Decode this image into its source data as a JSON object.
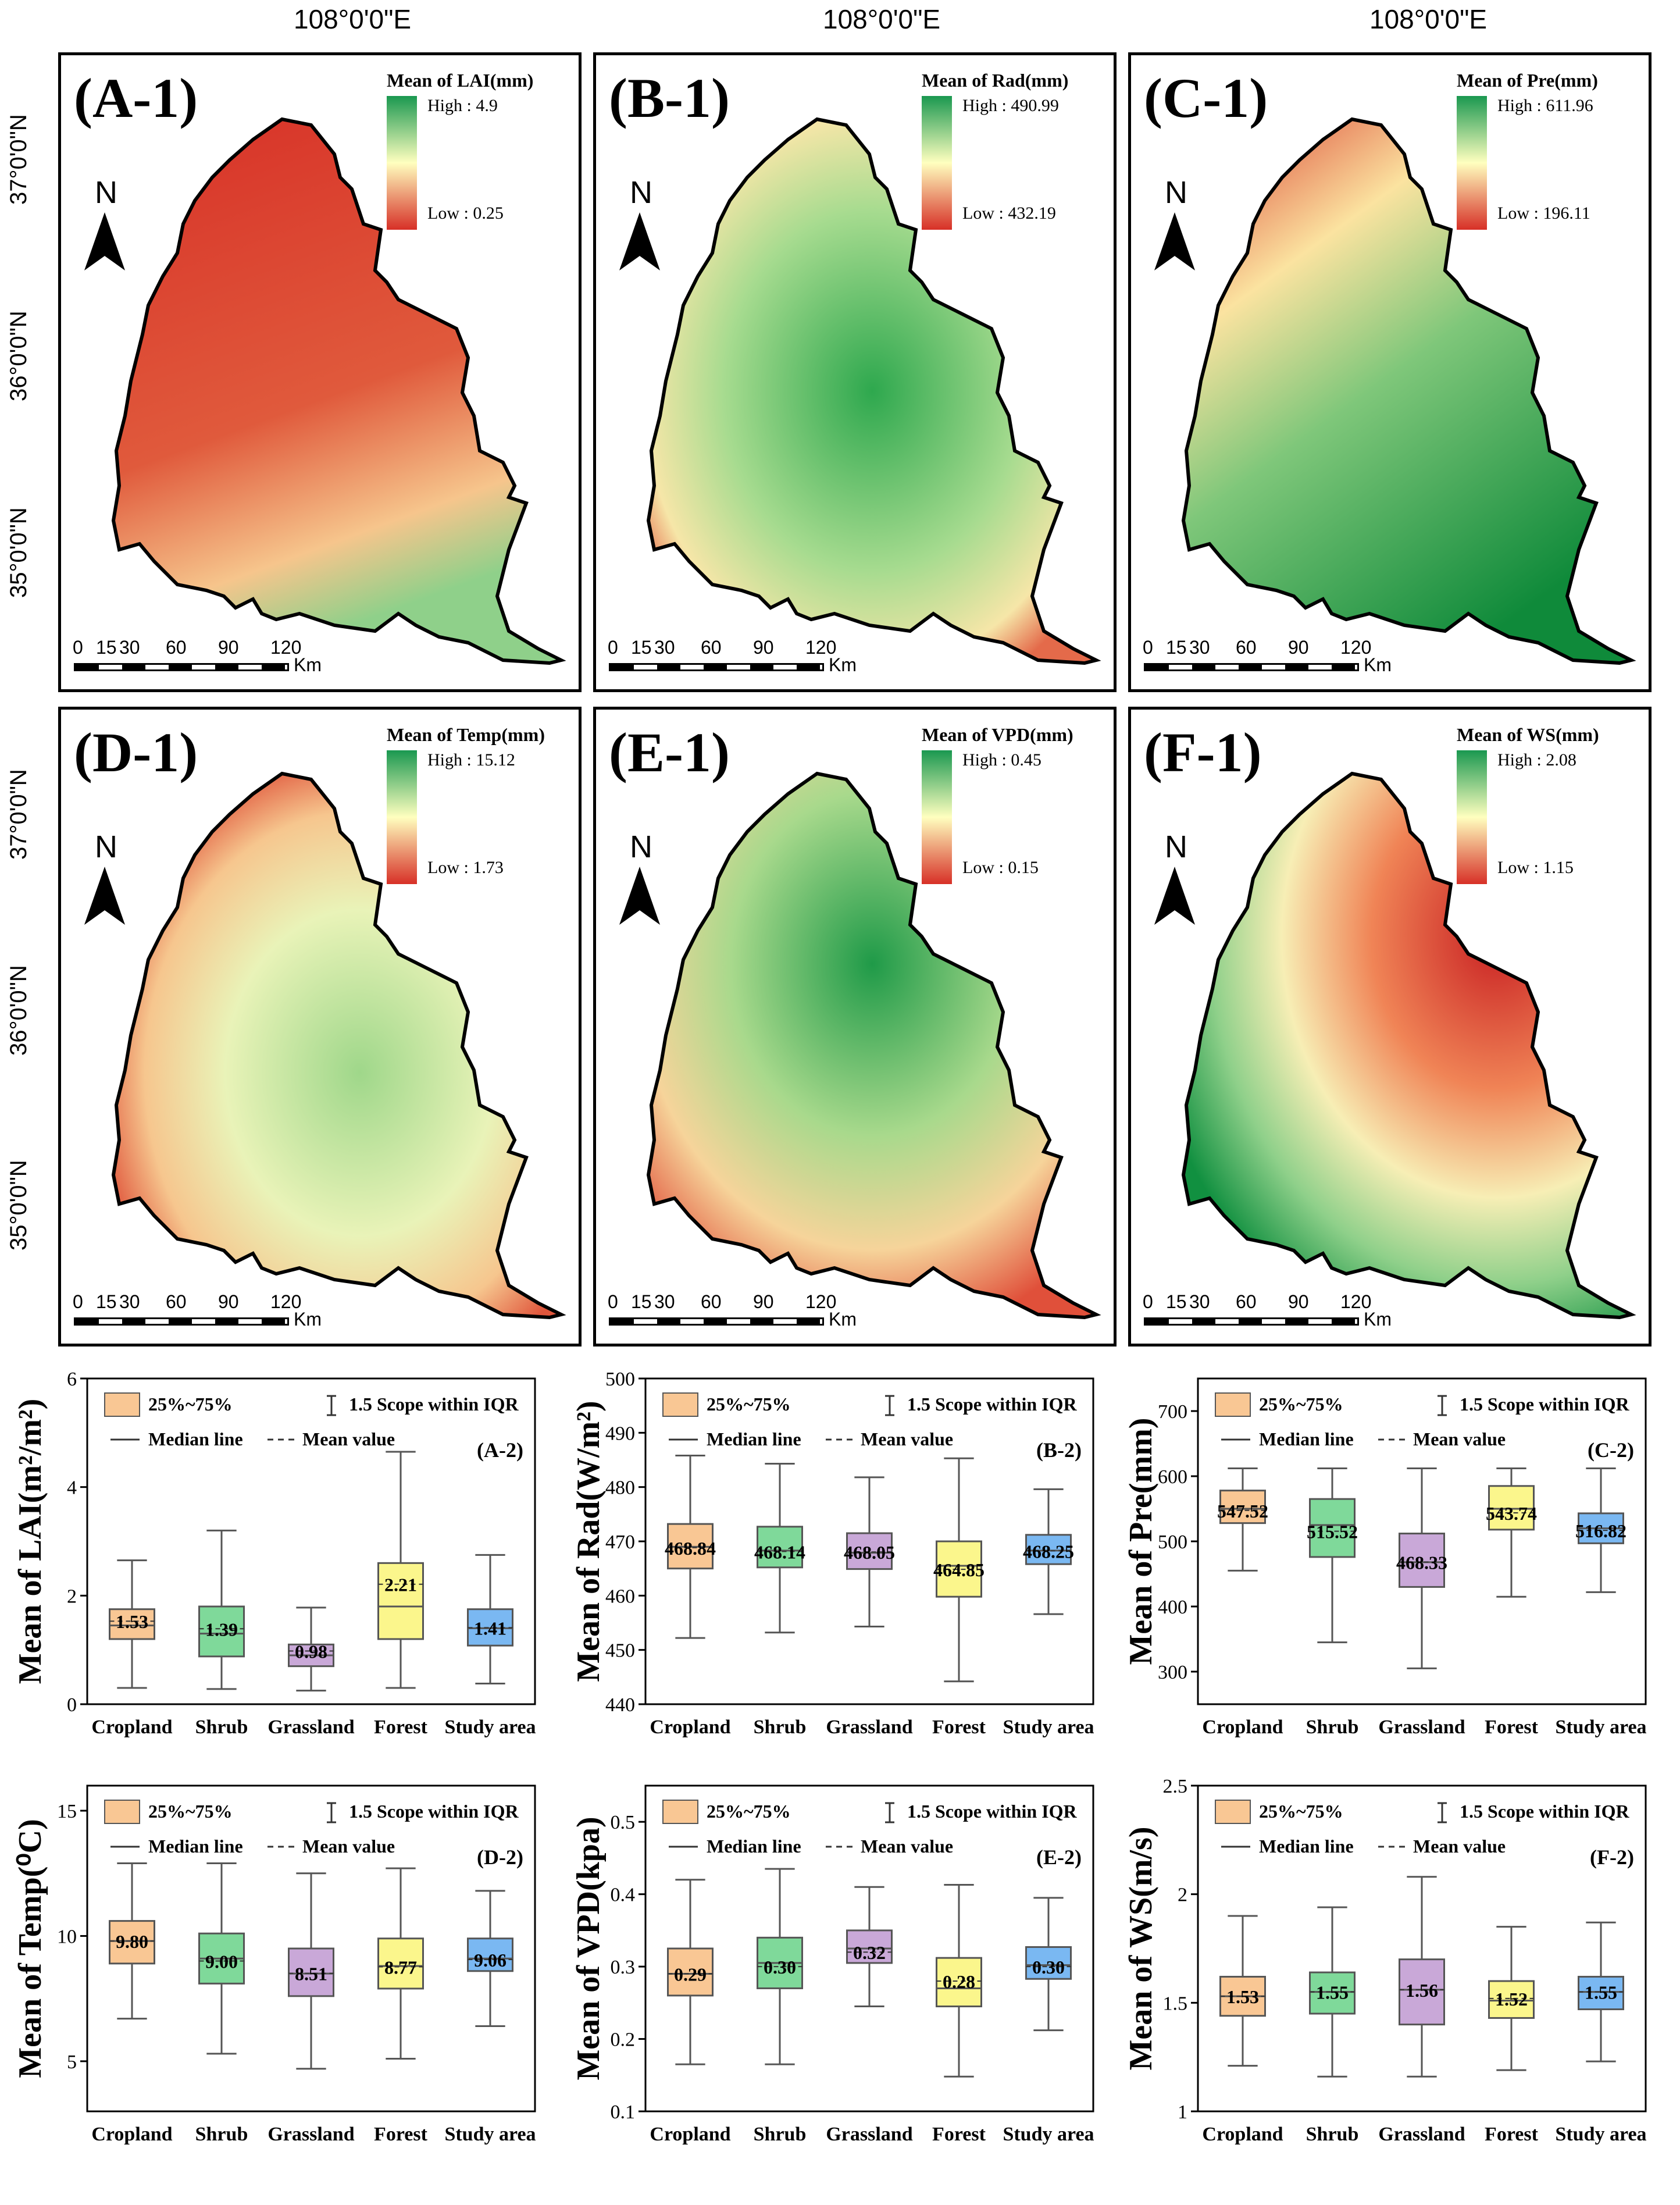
{
  "longitude_label": "108°0'0\"E",
  "latitude_labels": [
    "37°0'0\"N",
    "36°0'0\"N",
    "35°0'0\"N"
  ],
  "north_label": "N",
  "scale": {
    "ticks": [
      "0",
      "15",
      "30",
      "60",
      "90",
      "120"
    ],
    "unit": "Km"
  },
  "colors": {
    "high": "#1a9850",
    "mid": "#ffffbf",
    "low": "#d73027",
    "cropland": "#f9c794",
    "shrub": "#7fd99a",
    "grassland": "#c9a8d8",
    "forest": "#fbf68c",
    "study_area": "#7ab8f2"
  },
  "maps": [
    {
      "id": "A-1",
      "label": "(A-1)",
      "title": "Mean of LAI(mm)",
      "high": "High : 4.9",
      "low": "Low : 0.25",
      "pattern": "lai"
    },
    {
      "id": "B-1",
      "label": "(B-1)",
      "title": "Mean of Rad(mm)",
      "high": "High : 490.99",
      "low": "Low : 432.19",
      "pattern": "rad"
    },
    {
      "id": "C-1",
      "label": "(C-1)",
      "title": "Mean of Pre(mm)",
      "high": "High : 611.96",
      "low": "Low : 196.11",
      "pattern": "pre"
    },
    {
      "id": "D-1",
      "label": "(D-1)",
      "title": "Mean of Temp(mm)",
      "high": "High : 15.12",
      "low": "Low : 1.73",
      "pattern": "temp"
    },
    {
      "id": "E-1",
      "label": "(E-1)",
      "title": "Mean of VPD(mm)",
      "high": "High : 0.45",
      "low": "Low : 0.15",
      "pattern": "vpd"
    },
    {
      "id": "F-1",
      "label": "(F-1)",
      "title": "Mean of WS(mm)",
      "high": "High : 2.08",
      "low": "Low : 1.15",
      "pattern": "ws"
    }
  ],
  "legend_labels": {
    "box": "25%~75%",
    "whisker": "1.5 Scope within IQR",
    "median": "Median line",
    "mean": "Mean value"
  },
  "chart_data": [
    {
      "type": "box",
      "id": "A-2",
      "label": "(A-2)",
      "ylabel": "Mean of LAI(m²/m²)",
      "ylim": [
        0,
        6
      ],
      "yticks": [
        0,
        2,
        4,
        6
      ],
      "categories": [
        "Cropland",
        "Shrub",
        "Grassland",
        "Forest",
        "Study area"
      ],
      "boxes": [
        {
          "min": 0.3,
          "q1": 1.2,
          "median": 1.45,
          "q3": 1.75,
          "max": 2.65,
          "mean": 1.53,
          "mean_label": "1.53"
        },
        {
          "min": 0.28,
          "q1": 0.88,
          "median": 1.3,
          "q3": 1.8,
          "max": 3.2,
          "mean": 1.39,
          "mean_label": "1.39"
        },
        {
          "min": 0.25,
          "q1": 0.7,
          "median": 0.9,
          "q3": 1.1,
          "max": 1.78,
          "mean": 0.98,
          "mean_label": "0.98"
        },
        {
          "min": 0.3,
          "q1": 1.2,
          "median": 1.8,
          "q3": 2.6,
          "max": 4.65,
          "mean": 2.21,
          "mean_label": "2.21"
        },
        {
          "min": 0.38,
          "q1": 1.08,
          "median": 1.4,
          "q3": 1.75,
          "max": 2.75,
          "mean": 1.41,
          "mean_label": "1.41"
        }
      ]
    },
    {
      "type": "box",
      "id": "B-2",
      "label": "(B-2)",
      "ylabel": "Mean of Rad(W/m²)",
      "ylim": [
        440,
        500
      ],
      "yticks": [
        440,
        450,
        460,
        470,
        480,
        490,
        500
      ],
      "categories": [
        "Cropland",
        "Shrub",
        "Grassland",
        "Forest",
        "Study area"
      ],
      "boxes": [
        {
          "min": 452.2,
          "q1": 465,
          "median": 469,
          "q3": 473.2,
          "max": 485.8,
          "mean": 468.84,
          "mean_label": "468.84"
        },
        {
          "min": 453.2,
          "q1": 465.2,
          "median": 468.3,
          "q3": 472.7,
          "max": 484.3,
          "mean": 468.14,
          "mean_label": "468.14"
        },
        {
          "min": 454.3,
          "q1": 464.9,
          "median": 467.9,
          "q3": 471.5,
          "max": 481.8,
          "mean": 468.05,
          "mean_label": "468.05"
        },
        {
          "min": 444.2,
          "q1": 459.8,
          "median": 465.5,
          "q3": 470,
          "max": 485.3,
          "mean": 464.85,
          "mean_label": "464.85"
        },
        {
          "min": 456.6,
          "q1": 465.8,
          "median": 468.3,
          "q3": 471.2,
          "max": 479.6,
          "mean": 468.25,
          "mean_label": "468.25"
        }
      ]
    },
    {
      "type": "box",
      "id": "C-2",
      "label": "(C-2)",
      "ylabel": "Mean of Pre(mm)",
      "ylim": [
        250,
        750
      ],
      "yticks": [
        300,
        400,
        500,
        600,
        700
      ],
      "categories": [
        "Cropland",
        "Shrub",
        "Grassland",
        "Forest",
        "Study area"
      ],
      "boxes": [
        {
          "min": 455,
          "q1": 528,
          "median": 550,
          "q3": 578,
          "max": 612,
          "mean": 547.52,
          "mean_label": "547.52"
        },
        {
          "min": 345,
          "q1": 476,
          "median": 525,
          "q3": 565,
          "max": 612,
          "mean": 515.52,
          "mean_label": "515.52"
        },
        {
          "min": 305,
          "q1": 430,
          "median": 468,
          "q3": 512,
          "max": 612,
          "mean": 468.33,
          "mean_label": "468.33"
        },
        {
          "min": 415,
          "q1": 518,
          "median": 550,
          "q3": 585,
          "max": 612,
          "mean": 543.74,
          "mean_label": "543.74"
        },
        {
          "min": 422,
          "q1": 497,
          "median": 520,
          "q3": 543,
          "max": 612,
          "mean": 516.82,
          "mean_label": "516.82"
        }
      ]
    },
    {
      "type": "box",
      "id": "D-2",
      "label": "(D-2)",
      "ylabel": "Mean of Temp(⁰C)",
      "ylim": [
        3,
        16
      ],
      "yticks": [
        5,
        10,
        15
      ],
      "categories": [
        "Cropland",
        "Shrub",
        "Grassland",
        "Forest",
        "Study area"
      ],
      "boxes": [
        {
          "min": 6.7,
          "q1": 8.9,
          "median": 9.8,
          "q3": 10.6,
          "max": 12.9,
          "mean": 9.8,
          "mean_label": "9.80"
        },
        {
          "min": 5.3,
          "q1": 8.1,
          "median": 9.1,
          "q3": 10.1,
          "max": 12.9,
          "mean": 9.0,
          "mean_label": "9.00"
        },
        {
          "min": 4.7,
          "q1": 7.6,
          "median": 8.5,
          "q3": 9.5,
          "max": 12.5,
          "mean": 8.51,
          "mean_label": "8.51"
        },
        {
          "min": 5.1,
          "q1": 7.9,
          "median": 8.8,
          "q3": 9.9,
          "max": 12.7,
          "mean": 8.77,
          "mean_label": "8.77"
        },
        {
          "min": 6.4,
          "q1": 8.6,
          "median": 9.1,
          "q3": 9.9,
          "max": 11.8,
          "mean": 9.06,
          "mean_label": "9.06"
        }
      ]
    },
    {
      "type": "box",
      "id": "E-2",
      "label": "(E-2)",
      "ylabel": "Mean of  VPD(kpa)",
      "ylim": [
        0.1,
        0.55
      ],
      "yticks": [
        0.1,
        0.2,
        0.3,
        0.4,
        0.5
      ],
      "categories": [
        "Cropland",
        "Shrub",
        "Grassland",
        "Forest",
        "Study area"
      ],
      "boxes": [
        {
          "min": 0.165,
          "q1": 0.26,
          "median": 0.29,
          "q3": 0.325,
          "max": 0.42,
          "mean": 0.29,
          "mean_label": "0.29"
        },
        {
          "min": 0.165,
          "q1": 0.27,
          "median": 0.305,
          "q3": 0.34,
          "max": 0.435,
          "mean": 0.3,
          "mean_label": "0.30"
        },
        {
          "min": 0.245,
          "q1": 0.305,
          "median": 0.325,
          "q3": 0.35,
          "max": 0.41,
          "mean": 0.32,
          "mean_label": "0.32"
        },
        {
          "min": 0.148,
          "q1": 0.245,
          "median": 0.27,
          "q3": 0.312,
          "max": 0.413,
          "mean": 0.28,
          "mean_label": "0.28"
        },
        {
          "min": 0.212,
          "q1": 0.283,
          "median": 0.302,
          "q3": 0.327,
          "max": 0.395,
          "mean": 0.3,
          "mean_label": "0.30"
        }
      ]
    },
    {
      "type": "box",
      "id": "F-2",
      "label": "(F-2)",
      "ylabel": "Mean of WS(m/s)",
      "ylim": [
        1.0,
        2.5
      ],
      "yticks": [
        1.0,
        1.5,
        2.0,
        2.5
      ],
      "categories": [
        "Cropland",
        "Shrub",
        "Grassland",
        "Forest",
        "Study area"
      ],
      "boxes": [
        {
          "min": 1.21,
          "q1": 1.44,
          "median": 1.53,
          "q3": 1.62,
          "max": 1.9,
          "mean": 1.53,
          "mean_label": "1.53"
        },
        {
          "min": 1.16,
          "q1": 1.45,
          "median": 1.55,
          "q3": 1.64,
          "max": 1.94,
          "mean": 1.55,
          "mean_label": "1.55"
        },
        {
          "min": 1.16,
          "q1": 1.4,
          "median": 1.56,
          "q3": 1.7,
          "max": 2.08,
          "mean": 1.56,
          "mean_label": "1.56"
        },
        {
          "min": 1.19,
          "q1": 1.43,
          "median": 1.51,
          "q3": 1.6,
          "max": 1.85,
          "mean": 1.52,
          "mean_label": "1.52"
        },
        {
          "min": 1.23,
          "q1": 1.47,
          "median": 1.55,
          "q3": 1.62,
          "max": 1.87,
          "mean": 1.55,
          "mean_label": "1.55"
        }
      ]
    }
  ]
}
